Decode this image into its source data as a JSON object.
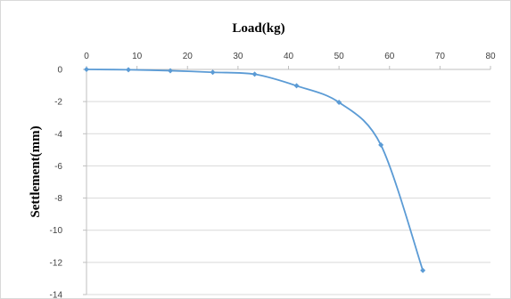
{
  "chart_data": {
    "type": "line",
    "title": "Load(kg)",
    "xlabel": "Load(kg)",
    "ylabel": "Settlement(mm)",
    "xlim": [
      0,
      80
    ],
    "ylim": [
      -14,
      0
    ],
    "x_ticks": [
      0,
      10,
      20,
      30,
      40,
      50,
      60,
      70,
      80
    ],
    "y_ticks": [
      0,
      -2,
      -4,
      -6,
      -8,
      -10,
      -12,
      -14
    ],
    "x_axis_position": "top",
    "grid": "horizontal",
    "legend": "none",
    "series": [
      {
        "x": [
          0,
          8.3,
          16.6,
          25,
          33.3,
          41.6,
          50,
          58.3,
          66.6
        ],
        "y": [
          0,
          -0.02,
          -0.08,
          -0.18,
          -0.3,
          -1.02,
          -2.05,
          -4.7,
          -12.5
        ],
        "color": "#5b9bd5",
        "smooth": true,
        "marker": "diamond"
      }
    ]
  }
}
